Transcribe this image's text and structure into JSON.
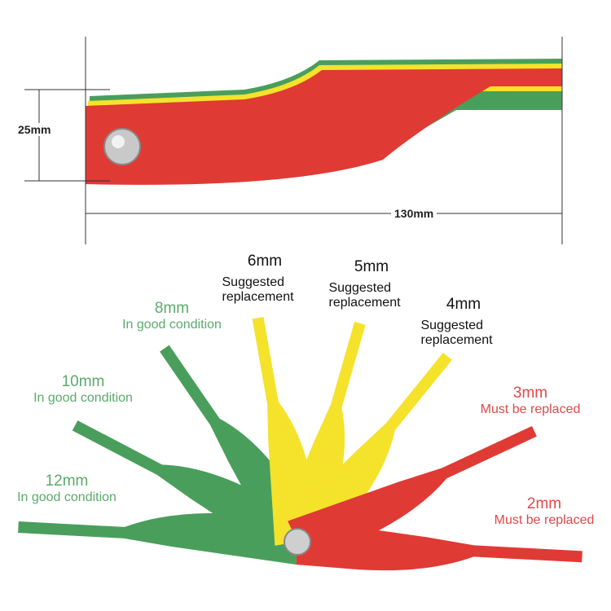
{
  "dimensions": {
    "width_label": "130mm",
    "height_label": "25mm"
  },
  "colors": {
    "green": "#4a9e5c",
    "yellow": "#f5e22a",
    "red": "#e03a34",
    "good_text": "#5aaa6a",
    "replace_text": "#e04848",
    "suggest_text": "#111111"
  },
  "gauges": [
    {
      "size": "12mm",
      "status": "In good condition",
      "color": "green"
    },
    {
      "size": "10mm",
      "status": "In good condition",
      "color": "green"
    },
    {
      "size": "8mm",
      "status": "In good condition",
      "color": "green"
    },
    {
      "size": "6mm",
      "status": "Suggested replacement",
      "color": "yellow"
    },
    {
      "size": "5mm",
      "status": "Suggested replacement",
      "color": "yellow"
    },
    {
      "size": "4mm",
      "status": "Suggested replacement",
      "color": "yellow"
    },
    {
      "size": "3mm",
      "status": "Must be replaced",
      "color": "red"
    },
    {
      "size": "2mm",
      "status": "Must be replaced",
      "color": "red"
    }
  ]
}
